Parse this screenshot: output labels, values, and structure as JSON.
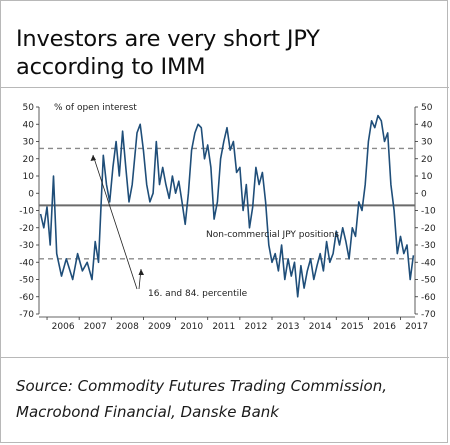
{
  "title_line1": "Investors are very short JPY",
  "title_line2": "according to IMM",
  "source_line1": "Source: Commodity Futures Trading Commission,",
  "source_line2": "Macrobond Financial, Danske Bank",
  "chart_data": {
    "type": "line",
    "title": "Investors are very short JPY according to IMM",
    "ylabel": "% of open interest",
    "ylim": [
      -70,
      50
    ],
    "yticks": [
      50,
      40,
      30,
      20,
      10,
      0,
      -10,
      -20,
      -30,
      -40,
      -50,
      -60,
      -70
    ],
    "xlim": [
      2005.75,
      2017.45
    ],
    "xticks": [
      "2006",
      "2007",
      "2008",
      "2009",
      "2010",
      "2011",
      "2012",
      "2013",
      "2014",
      "2015",
      "2016",
      "2017"
    ],
    "grid": false,
    "colors": {
      "series": "#1f4e79",
      "reference": "#555555",
      "percentile": "#888888"
    },
    "series": [
      {
        "name": "Non-commercial JPY positions",
        "points": [
          [
            2005.8,
            -12
          ],
          [
            2005.9,
            -20
          ],
          [
            2006.0,
            -8
          ],
          [
            2006.1,
            -30
          ],
          [
            2006.2,
            10
          ],
          [
            2006.3,
            -35
          ],
          [
            2006.45,
            -48
          ],
          [
            2006.6,
            -38
          ],
          [
            2006.8,
            -50
          ],
          [
            2006.95,
            -35
          ],
          [
            2007.1,
            -45
          ],
          [
            2007.25,
            -40
          ],
          [
            2007.4,
            -50
          ],
          [
            2007.5,
            -28
          ],
          [
            2007.6,
            -40
          ],
          [
            2007.75,
            22
          ],
          [
            2007.85,
            5
          ],
          [
            2007.95,
            -5
          ],
          [
            2008.05,
            15
          ],
          [
            2008.15,
            30
          ],
          [
            2008.25,
            10
          ],
          [
            2008.35,
            36
          ],
          [
            2008.45,
            15
          ],
          [
            2008.55,
            -5
          ],
          [
            2008.65,
            5
          ],
          [
            2008.8,
            35
          ],
          [
            2008.9,
            40
          ],
          [
            2009.0,
            25
          ],
          [
            2009.1,
            5
          ],
          [
            2009.2,
            -5
          ],
          [
            2009.3,
            0
          ],
          [
            2009.4,
            30
          ],
          [
            2009.5,
            5
          ],
          [
            2009.6,
            15
          ],
          [
            2009.7,
            5
          ],
          [
            2009.8,
            -3
          ],
          [
            2009.9,
            10
          ],
          [
            2010.0,
            0
          ],
          [
            2010.1,
            7
          ],
          [
            2010.2,
            -5
          ],
          [
            2010.3,
            -18
          ],
          [
            2010.4,
            0
          ],
          [
            2010.5,
            25
          ],
          [
            2010.6,
            35
          ],
          [
            2010.7,
            40
          ],
          [
            2010.8,
            38
          ],
          [
            2010.9,
            20
          ],
          [
            2011.0,
            28
          ],
          [
            2011.1,
            15
          ],
          [
            2011.2,
            -15
          ],
          [
            2011.3,
            -5
          ],
          [
            2011.4,
            20
          ],
          [
            2011.5,
            30
          ],
          [
            2011.6,
            38
          ],
          [
            2011.7,
            25
          ],
          [
            2011.8,
            30
          ],
          [
            2011.9,
            12
          ],
          [
            2012.0,
            15
          ],
          [
            2012.1,
            -10
          ],
          [
            2012.2,
            5
          ],
          [
            2012.3,
            -20
          ],
          [
            2012.4,
            -8
          ],
          [
            2012.5,
            15
          ],
          [
            2012.6,
            5
          ],
          [
            2012.7,
            12
          ],
          [
            2012.8,
            -5
          ],
          [
            2012.9,
            -30
          ],
          [
            2013.0,
            -40
          ],
          [
            2013.1,
            -35
          ],
          [
            2013.2,
            -45
          ],
          [
            2013.3,
            -30
          ],
          [
            2013.4,
            -50
          ],
          [
            2013.5,
            -38
          ],
          [
            2013.6,
            -48
          ],
          [
            2013.7,
            -40
          ],
          [
            2013.8,
            -60
          ],
          [
            2013.9,
            -42
          ],
          [
            2014.0,
            -55
          ],
          [
            2014.1,
            -45
          ],
          [
            2014.2,
            -38
          ],
          [
            2014.3,
            -50
          ],
          [
            2014.4,
            -42
          ],
          [
            2014.5,
            -35
          ],
          [
            2014.6,
            -45
          ],
          [
            2014.7,
            -28
          ],
          [
            2014.8,
            -40
          ],
          [
            2014.9,
            -35
          ],
          [
            2015.0,
            -22
          ],
          [
            2015.1,
            -30
          ],
          [
            2015.2,
            -20
          ],
          [
            2015.3,
            -28
          ],
          [
            2015.4,
            -38
          ],
          [
            2015.5,
            -20
          ],
          [
            2015.6,
            -25
          ],
          [
            2015.7,
            -5
          ],
          [
            2015.8,
            -10
          ],
          [
            2015.9,
            5
          ],
          [
            2016.0,
            30
          ],
          [
            2016.1,
            42
          ],
          [
            2016.2,
            38
          ],
          [
            2016.3,
            45
          ],
          [
            2016.4,
            42
          ],
          [
            2016.5,
            30
          ],
          [
            2016.6,
            35
          ],
          [
            2016.7,
            5
          ],
          [
            2016.8,
            -10
          ],
          [
            2016.9,
            -35
          ],
          [
            2017.0,
            -25
          ],
          [
            2017.1,
            -35
          ],
          [
            2017.2,
            -30
          ],
          [
            2017.3,
            -50
          ],
          [
            2017.4,
            -36
          ]
        ]
      }
    ],
    "reference_lines": [
      {
        "value": -7,
        "style": "solid"
      },
      {
        "value": 26,
        "style": "dashed"
      },
      {
        "value": -38,
        "style": "dashed"
      }
    ],
    "annotations": [
      {
        "text": "Non-commercial JPY positions"
      },
      {
        "text": "16. and 84. percentile"
      }
    ]
  }
}
